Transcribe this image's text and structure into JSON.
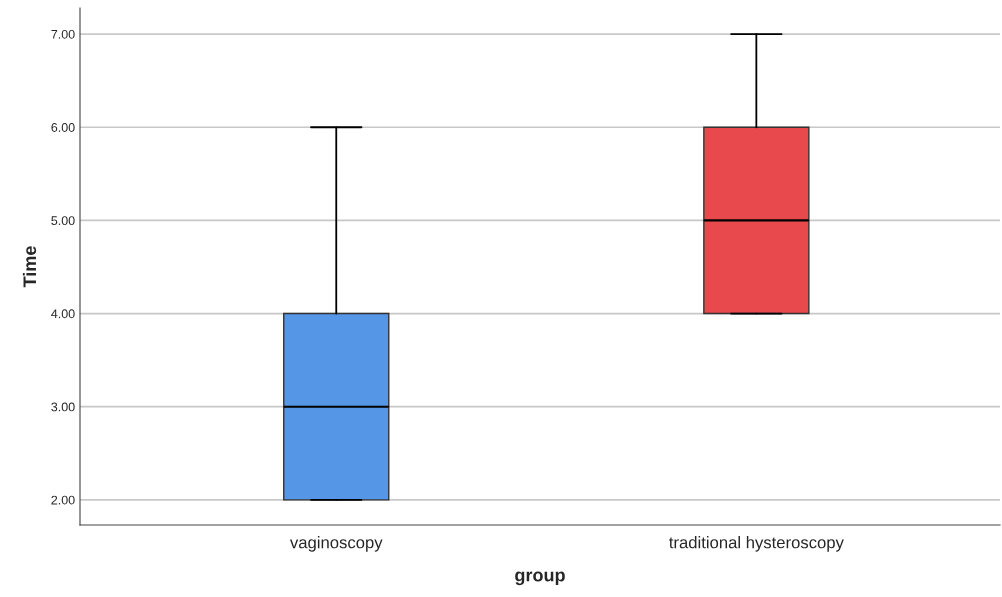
{
  "chart_data": {
    "type": "box",
    "xlabel": "group",
    "ylabel": "Time",
    "categories": [
      "vaginoscopy",
      "traditional hysteroscopy"
    ],
    "boxes": [
      {
        "low": 2,
        "q1": 2,
        "median": 3,
        "q3": 4,
        "high": 6
      },
      {
        "low": 4,
        "q1": 4,
        "median": 5,
        "q3": 6,
        "high": 7
      }
    ],
    "colors": [
      "#5596e6",
      "#e8494c"
    ],
    "ylim": [
      1.73,
      7.28
    ],
    "yticks": [
      {
        "value": 2,
        "label": "2.00"
      },
      {
        "value": 3,
        "label": "3.00"
      },
      {
        "value": 4,
        "label": "4.00"
      },
      {
        "value": 5,
        "label": "5.00"
      },
      {
        "value": 6,
        "label": "6.00"
      },
      {
        "value": 7,
        "label": "7.00"
      }
    ],
    "grid": "y",
    "legend": false
  }
}
